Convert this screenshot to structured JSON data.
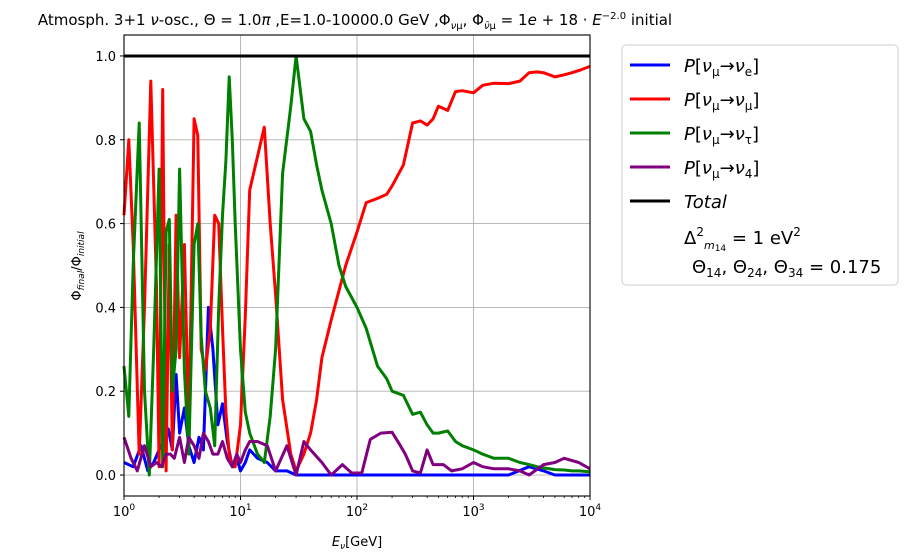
{
  "chart_data": {
    "type": "line",
    "title": "Atmosph. 3+1 ν-osc., Θ = 1.0π ,E=1.0-10000.0 GeV ,Φνμ, Φν̄μ = 1e + 18 · E^−2.0 initial",
    "xlabel": "Eν[GeV]",
    "ylabel": "Φfinal/Φinitial",
    "x_scale": "log",
    "xlim": [
      1,
      10000
    ],
    "ylim": [
      -0.05,
      1.05
    ],
    "x_ticks": [
      1,
      10,
      100,
      1000,
      10000
    ],
    "x_tick_labels": [
      "10^0",
      "10^1",
      "10^2",
      "10^3",
      "10^4"
    ],
    "y_ticks": [
      0.0,
      0.2,
      0.4,
      0.6,
      0.8,
      1.0
    ],
    "y_tick_labels": [
      "0.0",
      "0.2",
      "0.4",
      "0.6",
      "0.8",
      "1.0"
    ],
    "grid": true,
    "legend_position": "outside-right",
    "legend_extra_text": [
      "Δ²m14 = 1 eV²",
      "Θ14, Θ24, Θ34 = 0.175"
    ],
    "series": [
      {
        "name": "P[νμ→νe]",
        "color": "#0000ff",
        "x": [
          1.0,
          1.2,
          1.4,
          1.6,
          1.8,
          2.0,
          2.2,
          2.4,
          2.6,
          2.8,
          3.0,
          3.3,
          3.6,
          4.0,
          4.4,
          4.8,
          5.3,
          5.8,
          6.4,
          7.0,
          7.7,
          8.5,
          9.3,
          10,
          11,
          12,
          14,
          17,
          20,
          25,
          30,
          40,
          60,
          100,
          200,
          400,
          800,
          1500,
          2000,
          3000,
          4000,
          5000,
          10000
        ],
        "values": [
          0.03,
          0.02,
          0.07,
          0.01,
          0.03,
          0.06,
          0.08,
          0.11,
          0.06,
          0.24,
          0.1,
          0.16,
          0.07,
          0.03,
          0.09,
          0.06,
          0.4,
          0.3,
          0.12,
          0.17,
          0.08,
          0.02,
          0.04,
          0.01,
          0.03,
          0.06,
          0.04,
          0.03,
          0.01,
          0.01,
          0.0,
          0.0,
          0.0,
          0.0,
          0.0,
          0.0,
          0.0,
          0.0,
          0.0,
          0.02,
          0.01,
          0.0,
          0.0
        ]
      },
      {
        "name": "P[νμ→νμ]",
        "color": "#ff0000",
        "x": [
          1.0,
          1.1,
          1.2,
          1.35,
          1.5,
          1.7,
          1.9,
          2.0,
          2.15,
          2.3,
          2.45,
          2.6,
          2.8,
          3.0,
          3.3,
          3.6,
          4.0,
          4.3,
          4.6,
          5.0,
          5.5,
          6.0,
          6.5,
          7.0,
          7.5,
          8.0,
          8.5,
          9.0,
          10,
          11,
          12,
          14,
          16,
          18,
          20,
          23,
          27,
          30,
          35,
          40,
          45,
          50,
          60,
          70,
          80,
          100,
          120,
          150,
          180,
          200,
          250,
          300,
          350,
          400,
          450,
          500,
          600,
          700,
          800,
          1000,
          1200,
          1500,
          2000,
          2500,
          3000,
          3500,
          4000,
          5000,
          6000,
          7000,
          8000,
          10000
        ],
        "values": [
          0.62,
          0.8,
          0.55,
          0.05,
          0.4,
          0.94,
          0.45,
          0.02,
          0.92,
          0.01,
          0.55,
          0.06,
          0.62,
          0.28,
          0.55,
          0.1,
          0.85,
          0.81,
          0.3,
          0.25,
          0.35,
          0.62,
          0.6,
          0.35,
          0.15,
          0.05,
          0.02,
          0.02,
          0.12,
          0.38,
          0.68,
          0.76,
          0.83,
          0.6,
          0.43,
          0.18,
          0.05,
          0.01,
          0.05,
          0.1,
          0.18,
          0.28,
          0.37,
          0.44,
          0.5,
          0.58,
          0.65,
          0.66,
          0.67,
          0.69,
          0.74,
          0.84,
          0.845,
          0.835,
          0.85,
          0.88,
          0.87,
          0.915,
          0.917,
          0.912,
          0.93,
          0.935,
          0.934,
          0.94,
          0.96,
          0.962,
          0.96,
          0.95,
          0.955,
          0.96,
          0.965,
          0.975
        ]
      },
      {
        "name": "P[νμ→ντ]",
        "color": "#008000",
        "x": [
          1.0,
          1.1,
          1.2,
          1.35,
          1.5,
          1.65,
          1.8,
          2.0,
          2.15,
          2.3,
          2.45,
          2.6,
          2.8,
          3.0,
          3.3,
          3.6,
          4.0,
          4.3,
          4.6,
          5.0,
          5.5,
          6.0,
          6.5,
          7.0,
          7.5,
          8.0,
          8.5,
          9.0,
          10,
          11,
          12,
          14,
          16,
          18,
          20,
          23,
          27,
          30,
          35,
          40,
          45,
          50,
          60,
          70,
          80,
          100,
          120,
          150,
          180,
          200,
          250,
          300,
          350,
          400,
          450,
          500,
          600,
          700,
          800,
          1000,
          1200,
          1500,
          2000,
          2500,
          3000,
          3500,
          4000,
          5000,
          6000,
          7000,
          8000,
          10000
        ],
        "values": [
          0.26,
          0.14,
          0.5,
          0.84,
          0.2,
          0.0,
          0.3,
          0.73,
          0.02,
          0.58,
          0.61,
          0.2,
          0.3,
          0.73,
          0.25,
          0.05,
          0.55,
          0.6,
          0.33,
          0.2,
          0.16,
          0.07,
          0.4,
          0.62,
          0.75,
          0.95,
          0.8,
          0.6,
          0.3,
          0.15,
          0.1,
          0.05,
          0.03,
          0.14,
          0.3,
          0.72,
          0.88,
          1.0,
          0.85,
          0.82,
          0.74,
          0.68,
          0.6,
          0.5,
          0.45,
          0.4,
          0.35,
          0.26,
          0.23,
          0.2,
          0.19,
          0.145,
          0.15,
          0.12,
          0.1,
          0.1,
          0.105,
          0.08,
          0.07,
          0.06,
          0.05,
          0.04,
          0.04,
          0.03,
          0.025,
          0.02,
          0.017,
          0.013,
          0.012,
          0.01,
          0.01,
          0.008
        ]
      },
      {
        "name": "P[νμ→ν4]",
        "color": "#800080",
        "x": [
          1.0,
          1.15,
          1.3,
          1.5,
          1.7,
          1.9,
          2.1,
          2.3,
          2.5,
          2.7,
          3.0,
          3.3,
          3.6,
          4.0,
          4.4,
          4.8,
          5.3,
          5.8,
          6.4,
          7.0,
          7.7,
          8.5,
          9.3,
          10,
          11,
          12,
          14,
          17,
          20,
          25,
          30,
          35,
          40,
          50,
          60,
          75,
          90,
          110,
          130,
          160,
          200,
          230,
          260,
          300,
          350,
          400,
          450,
          550,
          650,
          800,
          1000,
          1200,
          1500,
          2000,
          2500,
          3000,
          4000,
          5000,
          6000,
          8000,
          10000
        ],
        "values": [
          0.09,
          0.04,
          0.01,
          0.07,
          0.02,
          0.03,
          0.02,
          0.05,
          0.05,
          0.04,
          0.09,
          0.03,
          0.09,
          0.07,
          0.04,
          0.1,
          0.08,
          0.05,
          0.05,
          0.08,
          0.04,
          0.02,
          0.05,
          0.03,
          0.06,
          0.08,
          0.08,
          0.07,
          0.01,
          0.07,
          0.0,
          0.08,
          0.06,
          0.03,
          0.0,
          0.025,
          0.005,
          0.005,
          0.085,
          0.1,
          0.102,
          0.075,
          0.05,
          0.01,
          0.005,
          0.06,
          0.025,
          0.025,
          0.01,
          0.015,
          0.03,
          0.02,
          0.015,
          0.015,
          0.01,
          0.0,
          0.025,
          0.03,
          0.04,
          0.03,
          0.015
        ]
      },
      {
        "name": "Total",
        "color": "#000000",
        "x": [
          1,
          10000
        ],
        "values": [
          1.0,
          1.0
        ]
      }
    ]
  }
}
